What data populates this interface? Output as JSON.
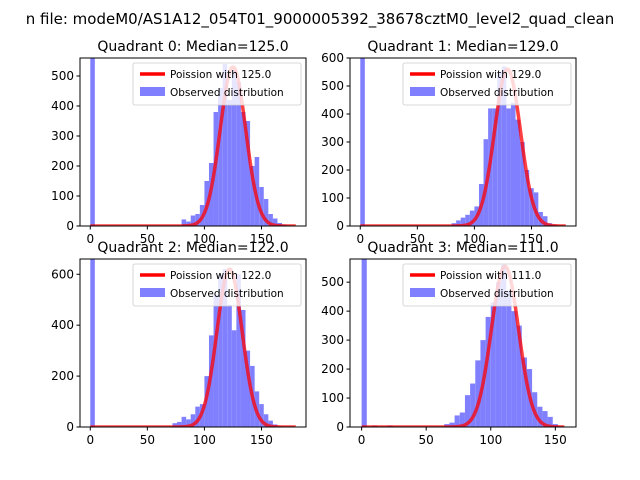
{
  "figure_title": "n file: modeM0/AS1A12_054T01_9000005392_38678cztM0_level2_quad_clean",
  "colors": {
    "hist": "#8080ff",
    "curve": "#ff0000",
    "curve_overlap": "#ff8080"
  },
  "chart_data": [
    {
      "type": "bar",
      "title": "Quadrant 0: Median=125.0",
      "median": 125.0,
      "legend": [
        "Poission with 125.0",
        "Observed distribution"
      ],
      "xlim": [
        -9,
        189
      ],
      "ylim": [
        0,
        560
      ],
      "xticks": [
        0,
        50,
        100,
        150
      ],
      "yticks": [
        0,
        100,
        200,
        300,
        400,
        500
      ],
      "bin_width": 4,
      "bins_x": [
        0,
        80,
        84,
        88,
        92,
        96,
        100,
        104,
        108,
        112,
        116,
        120,
        124,
        128,
        132,
        136,
        140,
        144,
        148,
        152,
        156,
        160,
        164,
        168,
        172,
        176
      ],
      "bins_y": [
        560,
        22,
        15,
        35,
        40,
        70,
        150,
        210,
        380,
        460,
        540,
        420,
        520,
        480,
        380,
        350,
        200,
        230,
        130,
        90,
        40,
        25,
        10,
        5,
        2,
        1
      ],
      "poisson_peak": 530
    },
    {
      "type": "bar",
      "title": "Quadrant 1: Median=129.0",
      "median": 129.0,
      "legend": [
        "Poission with 129.0",
        "Observed distribution"
      ],
      "xlim": [
        -9,
        189
      ],
      "ylim": [
        0,
        600
      ],
      "xticks": [
        0,
        50,
        100,
        150
      ],
      "yticks": [
        0,
        100,
        200,
        300,
        400,
        500,
        600
      ],
      "bin_width": 4,
      "bins_x": [
        0,
        80,
        84,
        88,
        92,
        96,
        100,
        104,
        108,
        112,
        116,
        120,
        124,
        128,
        132,
        136,
        140,
        144,
        148,
        152,
        156,
        160,
        164,
        168,
        172,
        176
      ],
      "bins_y": [
        600,
        10,
        20,
        30,
        40,
        55,
        70,
        150,
        310,
        420,
        420,
        550,
        570,
        420,
        440,
        380,
        300,
        200,
        135,
        120,
        50,
        35,
        10,
        5,
        2,
        1
      ],
      "poisson_peak": 560
    },
    {
      "type": "bar",
      "title": "Quadrant 2: Median=122.0",
      "median": 122.0,
      "legend": [
        "Poission with 122.0",
        "Observed distribution"
      ],
      "xlim": [
        -9,
        189
      ],
      "ylim": [
        0,
        660
      ],
      "xticks": [
        0,
        50,
        100,
        150
      ],
      "yticks": [
        0,
        200,
        400,
        600
      ],
      "bin_width": 4,
      "bins_x": [
        0,
        72,
        76,
        80,
        84,
        88,
        92,
        96,
        100,
        104,
        108,
        112,
        116,
        120,
        124,
        128,
        132,
        136,
        140,
        144,
        148,
        152,
        156,
        160,
        164
      ],
      "bins_y": [
        660,
        15,
        20,
        40,
        30,
        50,
        80,
        90,
        200,
        360,
        520,
        600,
        620,
        480,
        380,
        600,
        460,
        300,
        240,
        140,
        90,
        50,
        25,
        10,
        3
      ],
      "poisson_peak": 620
    },
    {
      "type": "bar",
      "title": "Quadrant 3: Median=111.0",
      "median": 111.0,
      "legend": [
        "Poission with 111.0",
        "Observed distribution"
      ],
      "xlim": [
        -9,
        166
      ],
      "ylim": [
        0,
        580
      ],
      "xticks": [
        0,
        50,
        100,
        150
      ],
      "yticks": [
        0,
        100,
        200,
        300,
        400,
        500
      ],
      "bin_width": 4,
      "bins_x": [
        0,
        8,
        20,
        64,
        68,
        72,
        76,
        80,
        84,
        88,
        92,
        96,
        100,
        104,
        108,
        112,
        116,
        120,
        124,
        128,
        132,
        136,
        140,
        144,
        148,
        152
      ],
      "bins_y": [
        580,
        5,
        5,
        10,
        15,
        40,
        50,
        110,
        150,
        230,
        300,
        380,
        430,
        500,
        560,
        470,
        400,
        350,
        240,
        200,
        120,
        70,
        55,
        35,
        10,
        3
      ],
      "poisson_peak": 555
    }
  ]
}
